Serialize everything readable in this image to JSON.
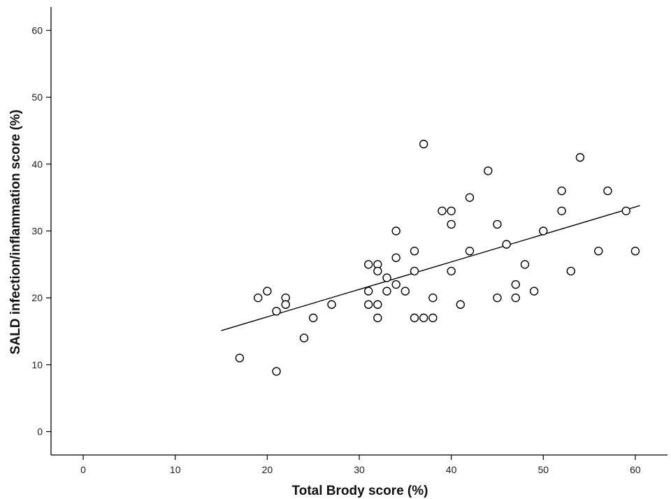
{
  "chart_data": {
    "type": "scatter",
    "title": "",
    "xlabel": "Total Brody score (%)",
    "ylabel": "SALD infection/inflammation score (%)",
    "xlim": [
      -3.5,
      63.5
    ],
    "ylim": [
      -3.5,
      63.5
    ],
    "x_ticks": [
      0,
      10,
      20,
      30,
      40,
      50,
      60
    ],
    "y_ticks": [
      0,
      10,
      20,
      30,
      40,
      50,
      60
    ],
    "grid": false,
    "marker": "open-circle",
    "colors": {
      "axis": "#000000",
      "marker_stroke": "#000000",
      "marker_fill": "#ffffff",
      "fit_line": "#000000"
    },
    "points": [
      [
        17,
        11
      ],
      [
        19,
        20
      ],
      [
        20,
        21
      ],
      [
        21,
        18
      ],
      [
        21,
        9
      ],
      [
        22,
        20
      ],
      [
        22,
        19
      ],
      [
        24,
        14
      ],
      [
        25,
        17
      ],
      [
        27,
        19
      ],
      [
        31,
        25
      ],
      [
        31,
        21
      ],
      [
        31,
        19
      ],
      [
        32,
        25
      ],
      [
        32,
        24
      ],
      [
        32,
        19
      ],
      [
        32,
        17
      ],
      [
        33,
        23
      ],
      [
        33,
        21
      ],
      [
        34,
        30
      ],
      [
        34,
        26
      ],
      [
        34,
        22
      ],
      [
        35,
        21
      ],
      [
        36,
        27
      ],
      [
        36,
        24
      ],
      [
        36,
        17
      ],
      [
        37,
        43
      ],
      [
        37,
        17
      ],
      [
        38,
        20
      ],
      [
        38,
        17
      ],
      [
        39,
        33
      ],
      [
        40,
        33
      ],
      [
        40,
        31
      ],
      [
        40,
        24
      ],
      [
        41,
        19
      ],
      [
        42,
        35
      ],
      [
        42,
        27
      ],
      [
        44,
        39
      ],
      [
        45,
        31
      ],
      [
        45,
        20
      ],
      [
        46,
        28
      ],
      [
        47,
        22
      ],
      [
        47,
        20
      ],
      [
        48,
        25
      ],
      [
        49,
        21
      ],
      [
        50,
        30
      ],
      [
        52,
        36
      ],
      [
        52,
        33
      ],
      [
        53,
        24
      ],
      [
        54,
        41
      ],
      [
        56,
        27
      ],
      [
        57,
        36
      ],
      [
        59,
        33
      ],
      [
        60,
        27
      ]
    ],
    "fit_line": {
      "type": "linear",
      "start": [
        15,
        15.1
      ],
      "end": [
        60.5,
        33.8
      ]
    }
  }
}
